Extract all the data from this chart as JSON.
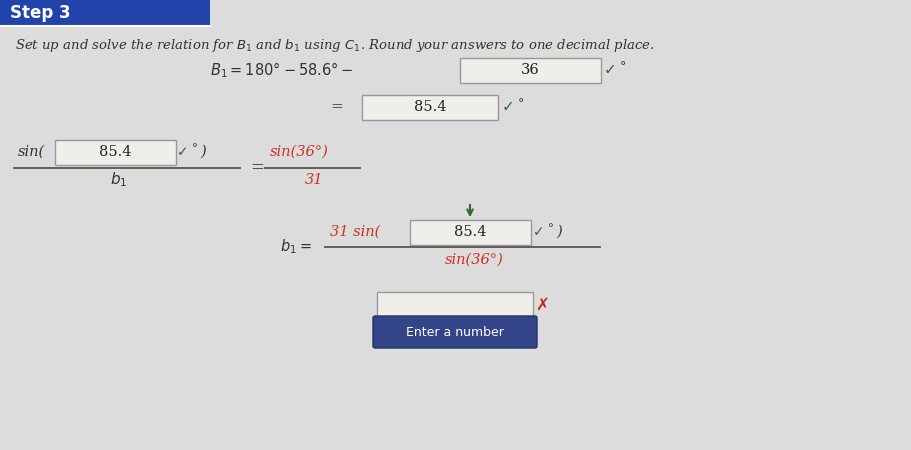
{
  "bg_color": "#dcdcdc",
  "content_bg": "#e8e6e2",
  "header_color": "#2244aa",
  "header_text": "Step 3",
  "header_text_color": "#ffffff",
  "instruction_text": "Set up and solve the relation for $B_1$ and $b_1$ using $C_1$. Round your answers to one decimal place.",
  "dark_text": "#333333",
  "red_text": "#cc3322",
  "check_color": "#336633",
  "x_color": "#cc2222",
  "box_fill": "#f0eee8",
  "box_border": "#999999",
  "button_color": "#334488",
  "button_text_color": "#ffffff",
  "arrow_color": "#336633",
  "line1_formula": "$B_1 = 180° - 58.6° -$",
  "line1_box": "36",
  "line2_box": "85.4",
  "line3_box": "85.4",
  "line3_rhs_num": "sin(36°)",
  "line3_rhs_denom": "31",
  "line4_num_prefix": "31 sin(",
  "line4_box": "85.4",
  "line4_denom": "sin(36°)",
  "button_label": "Enter a number"
}
